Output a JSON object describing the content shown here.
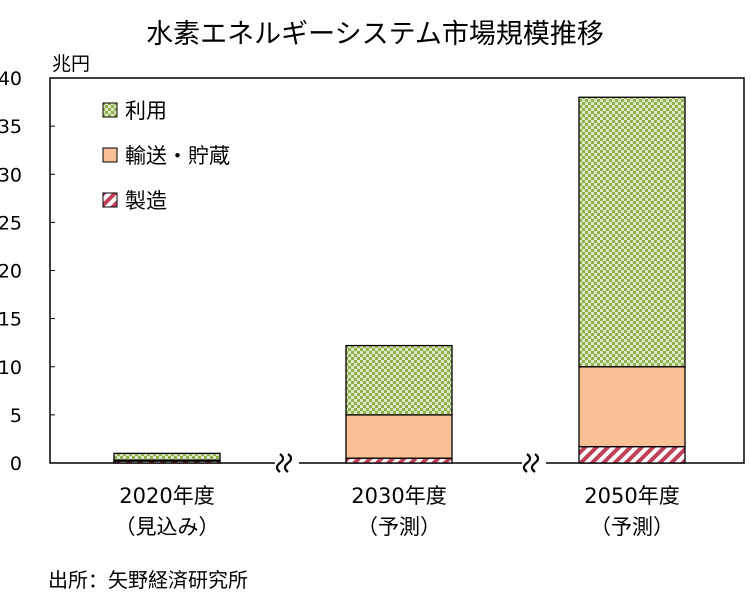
{
  "chart_data": {
    "type": "bar",
    "stacked": true,
    "title": "水素エネルギーシステム市場規模推移",
    "ylabel": "兆円",
    "ylim": [
      0,
      40
    ],
    "yticks": [
      0,
      5,
      10,
      15,
      20,
      25,
      30,
      35,
      40
    ],
    "categories": [
      {
        "line1": "2020年度",
        "line2": "（見込み）"
      },
      {
        "line1": "2030年度",
        "line2": "（予測）"
      },
      {
        "line1": "2050年度",
        "line2": "（予測）"
      }
    ],
    "series": [
      {
        "name": "製造",
        "values": [
          0.2,
          0.5,
          1.7
        ],
        "pattern": "stripe",
        "color": "#c0405a"
      },
      {
        "name": "輸送・貯蔵",
        "values": [
          0.1,
          4.5,
          8.3
        ],
        "pattern": "solid",
        "color": "#f9bf95"
      },
      {
        "name": "利用",
        "values": [
          0.7,
          7.2,
          28.0
        ],
        "pattern": "checker",
        "color": "#92b050"
      }
    ],
    "legend_order": [
      "利用",
      "輸送・貯蔵",
      "製造"
    ],
    "legend_position": "top-left",
    "axis_break_marks": true,
    "grid": false
  },
  "source": "出所：矢野経済研究所"
}
